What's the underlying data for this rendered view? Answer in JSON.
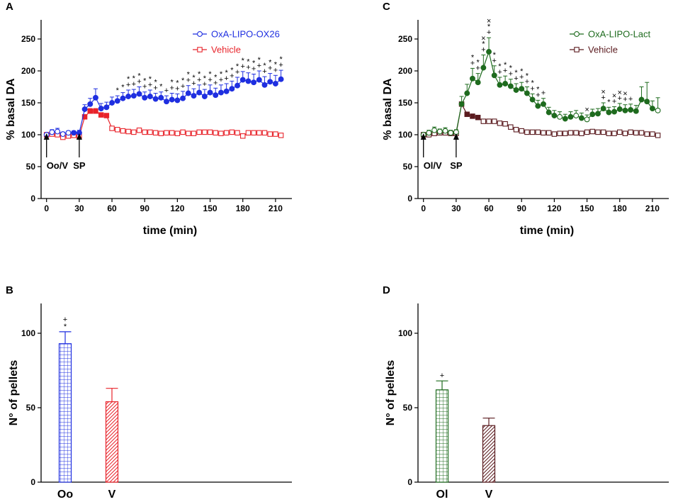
{
  "chart_data": [
    {
      "panel": "A",
      "type": "line",
      "xlabel": "time (min)",
      "ylabel": "% basal DA",
      "xlim": [
        -5,
        225
      ],
      "ylim": [
        0,
        280
      ],
      "xticks": [
        0,
        30,
        60,
        90,
        120,
        150,
        180,
        210
      ],
      "yticks": [
        0,
        50,
        100,
        150,
        200,
        250
      ],
      "legend_position": "top-right",
      "series": [
        {
          "name": "OxA-LIPO-OX26",
          "color": "#1f2fe0",
          "marker": "circle",
          "filled_from_index": 5,
          "x": [
            0,
            5,
            10,
            15,
            20,
            25,
            30,
            35,
            40,
            45,
            50,
            55,
            60,
            65,
            70,
            75,
            80,
            85,
            90,
            95,
            100,
            105,
            110,
            115,
            120,
            125,
            130,
            135,
            140,
            145,
            150,
            155,
            160,
            165,
            170,
            175,
            180,
            185,
            190,
            195,
            200,
            205,
            210,
            215
          ],
          "y": [
            100,
            104,
            105,
            101,
            103,
            103,
            103,
            140,
            148,
            158,
            141,
            143,
            150,
            153,
            157,
            160,
            161,
            164,
            158,
            160,
            156,
            158,
            152,
            155,
            154,
            157,
            165,
            161,
            166,
            160,
            166,
            162,
            166,
            168,
            172,
            177,
            186,
            184,
            182,
            186,
            178,
            183,
            180,
            187
          ],
          "err": [
            2,
            4,
            5,
            3,
            3,
            3,
            4,
            7,
            9,
            14,
            8,
            8,
            9,
            8,
            9,
            10,
            10,
            11,
            9,
            10,
            9,
            9,
            9,
            10,
            10,
            11,
            12,
            11,
            12,
            11,
            12,
            11,
            12,
            12,
            12,
            13,
            13,
            13,
            13,
            14,
            13,
            13,
            13,
            14
          ]
        },
        {
          "name": "Vehicle",
          "color": "#e8232a",
          "marker": "square",
          "filled_indices": [
            7,
            8,
            9,
            10,
            11
          ],
          "x": [
            0,
            5,
            10,
            15,
            20,
            25,
            30,
            35,
            40,
            45,
            50,
            55,
            60,
            65,
            70,
            75,
            80,
            85,
            90,
            95,
            100,
            105,
            110,
            115,
            120,
            125,
            130,
            135,
            140,
            145,
            150,
            155,
            160,
            165,
            170,
            175,
            180,
            185,
            190,
            195,
            200,
            205,
            210,
            215
          ],
          "y": [
            100,
            101,
            100,
            96,
            98,
            99,
            98,
            128,
            137,
            137,
            131,
            130,
            110,
            108,
            106,
            105,
            104,
            107,
            104,
            104,
            103,
            102,
            103,
            103,
            102,
            104,
            102,
            102,
            104,
            104,
            104,
            103,
            102,
            103,
            104,
            103,
            98,
            103,
            103,
            103,
            103,
            101,
            101,
            99
          ],
          "err": [
            1,
            2,
            2,
            2,
            2,
            2,
            2,
            3,
            4,
            4,
            3,
            3,
            2,
            2,
            2,
            2,
            2,
            2,
            2,
            2,
            2,
            2,
            2,
            2,
            2,
            2,
            2,
            2,
            2,
            2,
            2,
            2,
            2,
            2,
            2,
            2,
            2,
            2,
            2,
            2,
            2,
            2,
            2,
            2
          ]
        }
      ],
      "annotations": {
        "arrows": [
          {
            "x": 0,
            "label": "Oo/V"
          },
          {
            "x": 30,
            "label": "SP"
          }
        ],
        "significance": [
          {
            "x": 65,
            "marks": [
              "*"
            ]
          },
          {
            "x": 70,
            "marks": [
              "*"
            ]
          },
          {
            "x": 75,
            "marks": [
              "+",
              "*"
            ]
          },
          {
            "x": 80,
            "marks": [
              "+",
              "*"
            ]
          },
          {
            "x": 85,
            "marks": [
              "+",
              "*"
            ]
          },
          {
            "x": 90,
            "marks": [
              "+",
              "*"
            ]
          },
          {
            "x": 95,
            "marks": [
              "+",
              "*"
            ]
          },
          {
            "x": 100,
            "marks": [
              "+",
              "*"
            ]
          },
          {
            "x": 105,
            "marks": [
              "*"
            ]
          },
          {
            "x": 110,
            "marks": [
              "+"
            ]
          },
          {
            "x": 115,
            "marks": [
              "+",
              "*"
            ]
          },
          {
            "x": 120,
            "marks": [
              "+",
              "*"
            ]
          },
          {
            "x": 125,
            "marks": [
              "+",
              "*"
            ]
          },
          {
            "x": 130,
            "marks": [
              "+",
              "*"
            ]
          },
          {
            "x": 135,
            "marks": [
              "+",
              "*"
            ]
          },
          {
            "x": 140,
            "marks": [
              "+",
              "*"
            ]
          },
          {
            "x": 145,
            "marks": [
              "+",
              "*"
            ]
          },
          {
            "x": 150,
            "marks": [
              "+",
              "*"
            ]
          },
          {
            "x": 155,
            "marks": [
              "+",
              "*"
            ]
          },
          {
            "x": 160,
            "marks": [
              "+",
              "*"
            ]
          },
          {
            "x": 165,
            "marks": [
              "+",
              "*"
            ]
          },
          {
            "x": 170,
            "marks": [
              "+",
              "*"
            ]
          },
          {
            "x": 175,
            "marks": [
              "+",
              "*"
            ]
          },
          {
            "x": 180,
            "marks": [
              "+",
              "*"
            ]
          },
          {
            "x": 185,
            "marks": [
              "+",
              "*"
            ]
          },
          {
            "x": 190,
            "marks": [
              "+",
              "*"
            ]
          },
          {
            "x": 195,
            "marks": [
              "+",
              "*"
            ]
          },
          {
            "x": 200,
            "marks": [
              "+",
              "*"
            ]
          },
          {
            "x": 205,
            "marks": [
              "+",
              "*"
            ]
          },
          {
            "x": 210,
            "marks": [
              "+",
              "*"
            ]
          },
          {
            "x": 215,
            "marks": [
              "+",
              "*"
            ]
          }
        ]
      }
    },
    {
      "panel": "C",
      "type": "line",
      "xlabel": "time (min)",
      "ylabel": "% basal DA",
      "xlim": [
        -5,
        225
      ],
      "ylim": [
        0,
        280
      ],
      "xticks": [
        0,
        30,
        60,
        90,
        120,
        150,
        180,
        210
      ],
      "yticks": [
        0,
        50,
        100,
        150,
        200,
        250
      ],
      "legend_position": "top-right",
      "series": [
        {
          "name": "OxA-LIPO-Lact",
          "color": "#1e6b1e",
          "marker": "circle",
          "filled_indices": [
            7,
            8,
            9,
            10,
            11,
            12,
            13,
            14,
            15,
            16,
            17,
            18,
            19,
            20,
            21,
            22,
            23,
            24,
            26,
            27,
            29,
            31,
            32,
            33,
            34,
            35,
            36,
            37,
            38,
            39,
            40,
            41,
            42
          ],
          "x": [
            0,
            5,
            10,
            15,
            20,
            25,
            30,
            35,
            40,
            45,
            50,
            55,
            60,
            65,
            70,
            75,
            80,
            85,
            90,
            95,
            100,
            105,
            110,
            115,
            120,
            125,
            130,
            135,
            140,
            145,
            150,
            155,
            160,
            165,
            170,
            175,
            180,
            185,
            190,
            195,
            200,
            205,
            210,
            215
          ],
          "y": [
            100,
            103,
            107,
            105,
            106,
            103,
            104,
            148,
            165,
            188,
            182,
            205,
            230,
            193,
            178,
            180,
            176,
            170,
            172,
            165,
            155,
            145,
            148,
            135,
            130,
            128,
            125,
            128,
            130,
            126,
            124,
            132,
            133,
            141,
            135,
            136,
            140,
            138,
            139,
            137,
            155,
            152,
            141,
            138
          ],
          "err": [
            2,
            4,
            5,
            4,
            5,
            4,
            4,
            12,
            14,
            16,
            14,
            20,
            22,
            15,
            12,
            12,
            11,
            10,
            10,
            10,
            9,
            9,
            9,
            8,
            8,
            8,
            7,
            8,
            8,
            8,
            7,
            8,
            8,
            9,
            8,
            8,
            9,
            9,
            9,
            9,
            20,
            30,
            12,
            20
          ]
        },
        {
          "name": "Vehicle",
          "color": "#5a1a1e",
          "marker": "square",
          "filled_indices": [
            7,
            8,
            9,
            10
          ],
          "x": [
            0,
            5,
            10,
            15,
            20,
            25,
            30,
            35,
            40,
            45,
            50,
            55,
            60,
            65,
            70,
            75,
            80,
            85,
            90,
            95,
            100,
            105,
            110,
            115,
            120,
            125,
            130,
            135,
            140,
            145,
            150,
            155,
            160,
            165,
            170,
            175,
            180,
            185,
            190,
            195,
            200,
            205,
            210,
            215
          ],
          "y": [
            100,
            100,
            102,
            103,
            103,
            102,
            102,
            148,
            132,
            129,
            127,
            121,
            121,
            121,
            118,
            117,
            112,
            108,
            106,
            104,
            104,
            104,
            103,
            103,
            101,
            102,
            102,
            103,
            103,
            102,
            104,
            105,
            104,
            104,
            102,
            102,
            104,
            102,
            104,
            103,
            103,
            101,
            101,
            99
          ],
          "err": [
            1,
            2,
            2,
            2,
            2,
            2,
            2,
            3,
            3,
            3,
            3,
            3,
            3,
            3,
            3,
            3,
            2,
            2,
            2,
            2,
            2,
            2,
            2,
            2,
            2,
            2,
            2,
            2,
            2,
            2,
            2,
            2,
            2,
            2,
            2,
            2,
            2,
            2,
            2,
            2,
            2,
            2,
            2,
            2
          ]
        }
      ],
      "annotations": {
        "arrows": [
          {
            "x": 0,
            "label": "Ol/V"
          },
          {
            "x": 30,
            "label": "SP"
          }
        ],
        "significance": [
          {
            "x": 45,
            "marks": [
              "+",
              "*"
            ]
          },
          {
            "x": 50,
            "marks": [
              "+",
              "*"
            ]
          },
          {
            "x": 55,
            "marks": [
              "+",
              "*",
              "×"
            ]
          },
          {
            "x": 60,
            "marks": [
              "+",
              "*",
              "×"
            ]
          },
          {
            "x": 65,
            "marks": [
              "+",
              "*"
            ]
          },
          {
            "x": 70,
            "marks": [
              "+",
              "*"
            ]
          },
          {
            "x": 75,
            "marks": [
              "+",
              "*"
            ]
          },
          {
            "x": 80,
            "marks": [
              "+",
              "*"
            ]
          },
          {
            "x": 85,
            "marks": [
              "+",
              "*"
            ]
          },
          {
            "x": 90,
            "marks": [
              "+",
              "*"
            ]
          },
          {
            "x": 95,
            "marks": [
              "+",
              "*"
            ]
          },
          {
            "x": 100,
            "marks": [
              "+",
              "*"
            ]
          },
          {
            "x": 105,
            "marks": [
              "+",
              "*"
            ]
          },
          {
            "x": 110,
            "marks": [
              "+"
            ]
          },
          {
            "x": 150,
            "marks": [
              "×"
            ]
          },
          {
            "x": 165,
            "marks": [
              "+",
              "×"
            ]
          },
          {
            "x": 170,
            "marks": [
              "*"
            ]
          },
          {
            "x": 175,
            "marks": [
              "+",
              "×"
            ]
          },
          {
            "x": 180,
            "marks": [
              "+",
              "×"
            ]
          },
          {
            "x": 185,
            "marks": [
              "+",
              "×"
            ]
          },
          {
            "x": 190,
            "marks": [
              "+"
            ]
          }
        ]
      }
    },
    {
      "panel": "B",
      "type": "bar",
      "xlabel": "",
      "ylabel": "N° of pellets",
      "ylim": [
        0,
        120
      ],
      "yticks": [
        0,
        50,
        100
      ],
      "categories": [
        "Oo",
        "V"
      ],
      "values": [
        93,
        54
      ],
      "err": [
        8,
        9
      ],
      "colors": [
        "#1f2fe0",
        "#e8232a"
      ],
      "patterns": [
        "grid",
        "hatch"
      ],
      "significance": [
        [
          "+",
          "*"
        ],
        []
      ]
    },
    {
      "panel": "D",
      "type": "bar",
      "xlabel": "",
      "ylabel": "N° of pellets",
      "ylim": [
        0,
        120
      ],
      "yticks": [
        0,
        50,
        100
      ],
      "categories": [
        "Ol",
        "V"
      ],
      "values": [
        62,
        38
      ],
      "err": [
        6,
        5
      ],
      "colors": [
        "#1e6b1e",
        "#5a1a1e"
      ],
      "patterns": [
        "grid",
        "hatch"
      ],
      "significance": [
        [
          "+"
        ],
        []
      ]
    }
  ]
}
